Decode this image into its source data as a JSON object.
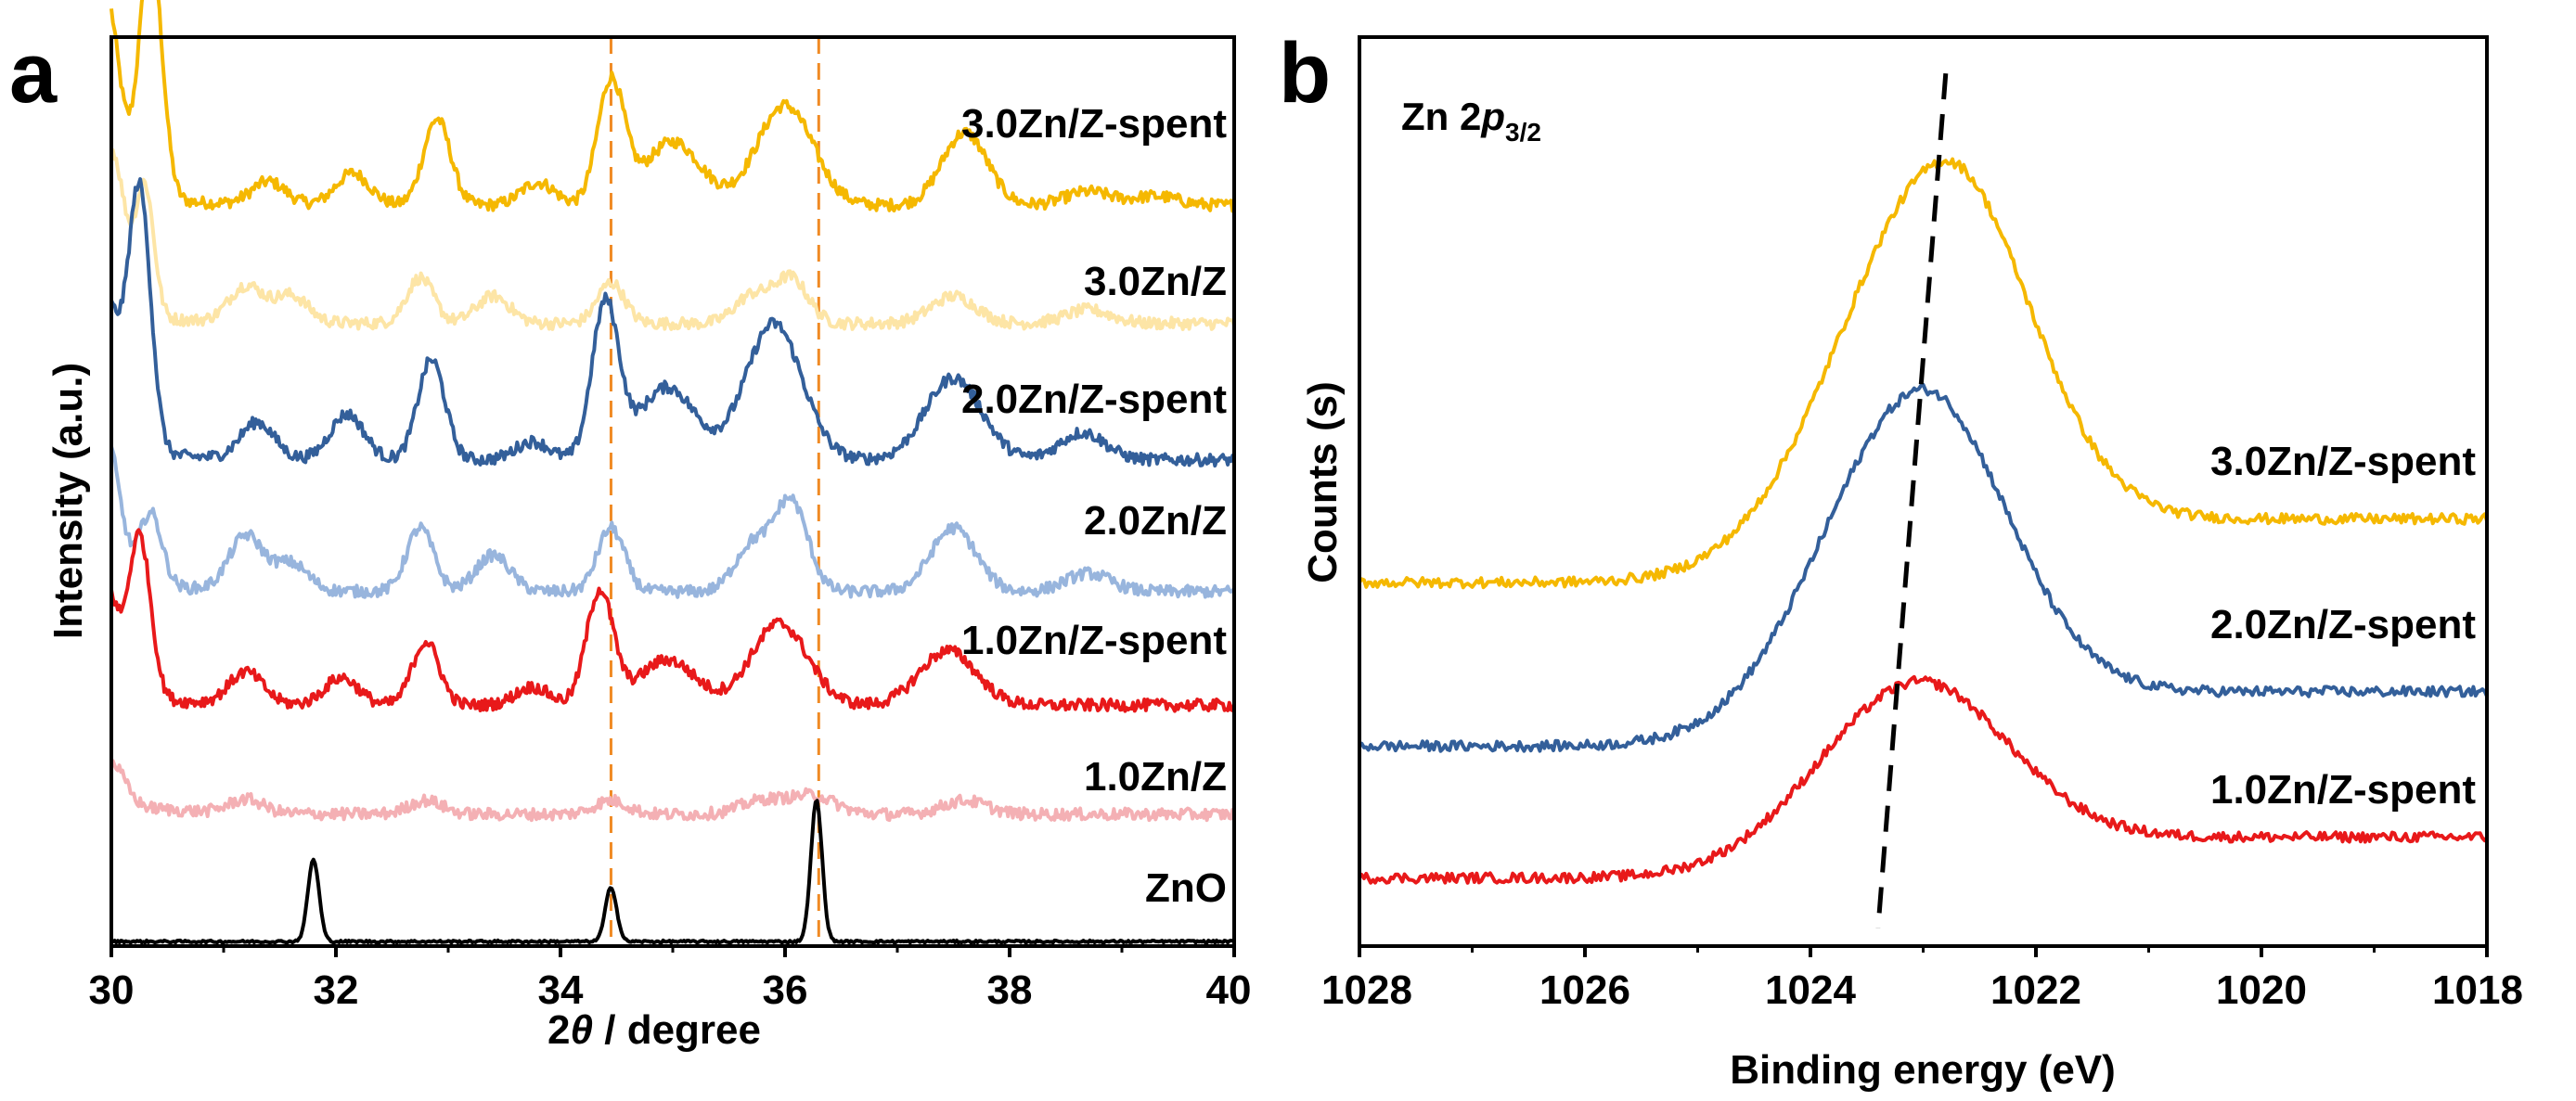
{
  "chart_data": [
    {
      "panel": "a",
      "type": "line",
      "title": "",
      "xlabel_prefix": "2",
      "xlabel_symbol": "θ",
      "xlabel_suffix": " / degree",
      "ylabel_text": "Intensity ",
      "ylabel_unit": "(a.u.)",
      "xlim": [
        30,
        40
      ],
      "xticks": [
        "30",
        "32",
        "34",
        "36",
        "38",
        "40"
      ],
      "xtick_values": [
        30,
        32,
        34,
        36,
        38,
        40
      ],
      "ylim": [
        0,
        100
      ],
      "grid": false,
      "legend": "none (labels placed beside traces)",
      "reference_lines": {
        "x": [
          34.45,
          36.3
        ],
        "color": "#f08a24",
        "style": "dashed"
      },
      "series": [
        {
          "name": "3.0Zn/Z-spent",
          "color": "#f5b800",
          "baseline": 81.5,
          "peaks": [
            [
              29.95,
              0.12,
              22
            ],
            [
              30.35,
              0.1,
              28
            ],
            [
              31.4,
              0.15,
              2.5
            ],
            [
              32.15,
              0.15,
              3.5
            ],
            [
              32.9,
              0.12,
              9.5
            ],
            [
              33.8,
              0.15,
              2.5
            ],
            [
              34.45,
              0.12,
              13.5
            ],
            [
              35.0,
              0.25,
              7
            ],
            [
              36.0,
              0.25,
              11
            ],
            [
              37.6,
              0.2,
              8
            ],
            [
              38.7,
              0.2,
              1.5
            ],
            [
              39.3,
              0.2,
              1
            ]
          ]
        },
        {
          "name": "3.0Zn/Z",
          "color": "#fde5a6",
          "baseline": 68.5,
          "peaks": [
            [
              30.0,
              0.12,
              18
            ],
            [
              30.3,
              0.08,
              14
            ],
            [
              31.2,
              0.15,
              4
            ],
            [
              31.6,
              0.15,
              3
            ],
            [
              32.75,
              0.12,
              5
            ],
            [
              33.4,
              0.15,
              3
            ],
            [
              34.45,
              0.12,
              4.5
            ],
            [
              35.7,
              0.15,
              3
            ],
            [
              36.05,
              0.15,
              5
            ],
            [
              37.5,
              0.2,
              3
            ],
            [
              38.7,
              0.2,
              1.5
            ]
          ]
        },
        {
          "name": "2.0Zn/Z-spent",
          "color": "#335f9a",
          "baseline": 53.5,
          "peaks": [
            [
              29.95,
              0.12,
              16
            ],
            [
              30.25,
              0.1,
              29
            ],
            [
              31.3,
              0.15,
              4
            ],
            [
              32.1,
              0.15,
              5
            ],
            [
              32.85,
              0.12,
              11
            ],
            [
              33.75,
              0.15,
              2
            ],
            [
              34.4,
              0.12,
              17
            ],
            [
              34.95,
              0.25,
              8
            ],
            [
              35.9,
              0.25,
              15
            ],
            [
              37.5,
              0.25,
              9
            ],
            [
              38.65,
              0.2,
              3
            ]
          ]
        },
        {
          "name": "2.0Zn/Z",
          "color": "#98b5dd",
          "baseline": 39,
          "peaks": [
            [
              29.95,
              0.12,
              16
            ],
            [
              30.35,
              0.1,
              8
            ],
            [
              31.2,
              0.15,
              6
            ],
            [
              31.6,
              0.15,
              3
            ],
            [
              32.75,
              0.12,
              7
            ],
            [
              33.4,
              0.15,
              4
            ],
            [
              34.45,
              0.12,
              7
            ],
            [
              35.7,
              0.15,
              5
            ],
            [
              36.05,
              0.15,
              10
            ],
            [
              37.5,
              0.2,
              7
            ],
            [
              38.7,
              0.2,
              2
            ]
          ]
        },
        {
          "name": "1.0Zn/Z-spent",
          "color": "#e8191a",
          "baseline": 26.5,
          "peaks": [
            [
              29.95,
              0.1,
              12
            ],
            [
              30.25,
              0.1,
              18
            ],
            [
              31.2,
              0.15,
              3.5
            ],
            [
              32.05,
              0.15,
              3
            ],
            [
              32.8,
              0.12,
              7
            ],
            [
              33.75,
              0.15,
              2
            ],
            [
              34.35,
              0.12,
              12.5
            ],
            [
              34.95,
              0.25,
              5
            ],
            [
              35.95,
              0.25,
              9
            ],
            [
              37.45,
              0.25,
              6
            ]
          ]
        },
        {
          "name": "1.0Zn/Z",
          "color": "#f4b0b4",
          "baseline": 14.5,
          "peaks": [
            [
              30.0,
              0.12,
              4.5
            ],
            [
              31.2,
              0.15,
              1.5
            ],
            [
              32.8,
              0.15,
              1.5
            ],
            [
              34.45,
              0.15,
              1.5
            ],
            [
              35.8,
              0.2,
              1.5
            ],
            [
              36.25,
              0.2,
              2
            ],
            [
              37.6,
              0.2,
              1.5
            ]
          ]
        },
        {
          "name": "ZnO",
          "color": "#000000",
          "baseline": 0.5,
          "peaks": [
            [
              31.8,
              0.05,
              9
            ],
            [
              34.45,
              0.05,
              6
            ],
            [
              36.28,
              0.05,
              15.5
            ]
          ]
        }
      ]
    },
    {
      "panel": "b",
      "type": "line",
      "title": "",
      "annotation_main": "Zn 2",
      "annotation_italic": "p",
      "annotation_sub": "3/2",
      "xlabel": "Binding energy (eV)",
      "ylabel": "Counts (s)",
      "xlim": [
        1028,
        1018
      ],
      "xticks": [
        "1028",
        "1026",
        "1024",
        "1022",
        "1020",
        "1018"
      ],
      "xtick_values": [
        1028,
        1026,
        1024,
        1022,
        1020,
        1018
      ],
      "ylim": [
        0,
        100
      ],
      "grid": false,
      "legend": "none (labels placed beside traces)",
      "guide_line": {
        "x_top": 1022.8,
        "x_bottom": 1023.4,
        "style": "dashed",
        "color": "#000000"
      },
      "series": [
        {
          "name": "3.0Zn/Z-spent",
          "color": "#f5b800",
          "y_left": 40,
          "y_right": 47,
          "peak_x": 1022.85,
          "peak_h": 43,
          "sigma_left": 0.9,
          "sigma_right": 0.75
        },
        {
          "name": "2.0Zn/Z-spent",
          "color": "#335f9a",
          "y_left": 22,
          "y_right": 28,
          "peak_x": 1023.05,
          "peak_h": 37,
          "sigma_left": 0.85,
          "sigma_right": 0.75
        },
        {
          "name": "1.0Zn/Z-spent",
          "color": "#e8191a",
          "y_left": 7.5,
          "y_right": 12,
          "peak_x": 1023.1,
          "peak_h": 20,
          "sigma_left": 0.85,
          "sigma_right": 0.8
        }
      ]
    }
  ]
}
